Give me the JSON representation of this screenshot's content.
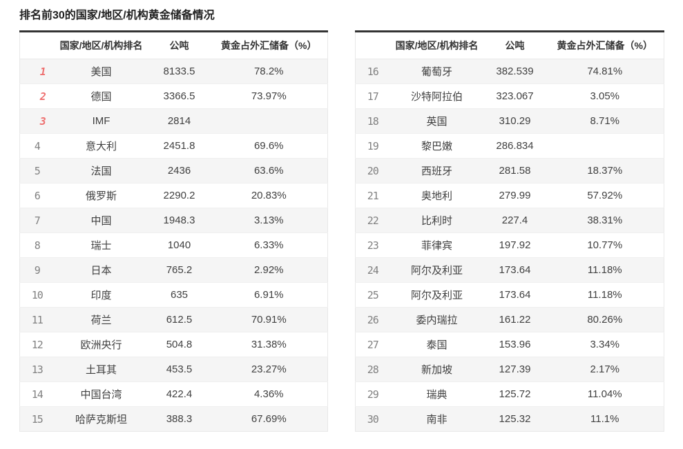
{
  "page": {
    "title": "排名前30的国家/地区/机构黄金储备情况"
  },
  "columns": {
    "rank": "",
    "country": "国家/地区/机构排名",
    "tonnes": "公吨",
    "pct": "黄金占外汇储备（%）"
  },
  "colors": {
    "top3_rank": "#ee6f6f",
    "rank_default": "#808080",
    "zebra_stripe": "#f5f5f5",
    "table_top_border": "#333333",
    "body_text": "#404040"
  },
  "tables": [
    {
      "name": "ranks-1-15",
      "rows": [
        {
          "rank": "1",
          "country": "美国",
          "tonnes": "8133.5",
          "pct": "78.2%"
        },
        {
          "rank": "2",
          "country": "德国",
          "tonnes": "3366.5",
          "pct": "73.97%"
        },
        {
          "rank": "3",
          "country": "IMF",
          "tonnes": "2814",
          "pct": ""
        },
        {
          "rank": "4",
          "country": "意大利",
          "tonnes": "2451.8",
          "pct": "69.6%"
        },
        {
          "rank": "5",
          "country": "法国",
          "tonnes": "2436",
          "pct": "63.6%"
        },
        {
          "rank": "6",
          "country": "俄罗斯",
          "tonnes": "2290.2",
          "pct": "20.83%"
        },
        {
          "rank": "7",
          "country": "中国",
          "tonnes": "1948.3",
          "pct": "3.13%"
        },
        {
          "rank": "8",
          "country": "瑞士",
          "tonnes": "1040",
          "pct": "6.33%"
        },
        {
          "rank": "9",
          "country": "日本",
          "tonnes": "765.2",
          "pct": "2.92%"
        },
        {
          "rank": "10",
          "country": "印度",
          "tonnes": "635",
          "pct": "6.91%"
        },
        {
          "rank": "11",
          "country": "荷兰",
          "tonnes": "612.5",
          "pct": "70.91%"
        },
        {
          "rank": "12",
          "country": "欧洲央行",
          "tonnes": "504.8",
          "pct": "31.38%"
        },
        {
          "rank": "13",
          "country": "土耳其",
          "tonnes": "453.5",
          "pct": "23.27%"
        },
        {
          "rank": "14",
          "country": "中国台湾",
          "tonnes": "422.4",
          "pct": "4.36%"
        },
        {
          "rank": "15",
          "country": "哈萨克斯坦",
          "tonnes": "388.3",
          "pct": "67.69%"
        }
      ]
    },
    {
      "name": "ranks-16-30",
      "rows": [
        {
          "rank": "16",
          "country": "葡萄牙",
          "tonnes": "382.539",
          "pct": "74.81%"
        },
        {
          "rank": "17",
          "country": "沙特阿拉伯",
          "tonnes": "323.067",
          "pct": "3.05%"
        },
        {
          "rank": "18",
          "country": "英国",
          "tonnes": "310.29",
          "pct": "8.71%"
        },
        {
          "rank": "19",
          "country": "黎巴嫩",
          "tonnes": "286.834",
          "pct": ""
        },
        {
          "rank": "20",
          "country": "西班牙",
          "tonnes": "281.58",
          "pct": "18.37%"
        },
        {
          "rank": "21",
          "country": "奥地利",
          "tonnes": "279.99",
          "pct": "57.92%"
        },
        {
          "rank": "22",
          "country": "比利时",
          "tonnes": "227.4",
          "pct": "38.31%"
        },
        {
          "rank": "23",
          "country": "菲律宾",
          "tonnes": "197.92",
          "pct": "10.77%"
        },
        {
          "rank": "24",
          "country": "阿尔及利亚",
          "tonnes": "173.64",
          "pct": "11.18%"
        },
        {
          "rank": "25",
          "country": "阿尔及利亚",
          "tonnes": "173.64",
          "pct": "11.18%"
        },
        {
          "rank": "26",
          "country": "委内瑞拉",
          "tonnes": "161.22",
          "pct": "80.26%"
        },
        {
          "rank": "27",
          "country": "泰国",
          "tonnes": "153.96",
          "pct": "3.34%"
        },
        {
          "rank": "28",
          "country": "新加坡",
          "tonnes": "127.39",
          "pct": "2.17%"
        },
        {
          "rank": "29",
          "country": "瑞典",
          "tonnes": "125.72",
          "pct": "11.04%"
        },
        {
          "rank": "30",
          "country": "南非",
          "tonnes": "125.32",
          "pct": "11.1%"
        }
      ]
    }
  ]
}
